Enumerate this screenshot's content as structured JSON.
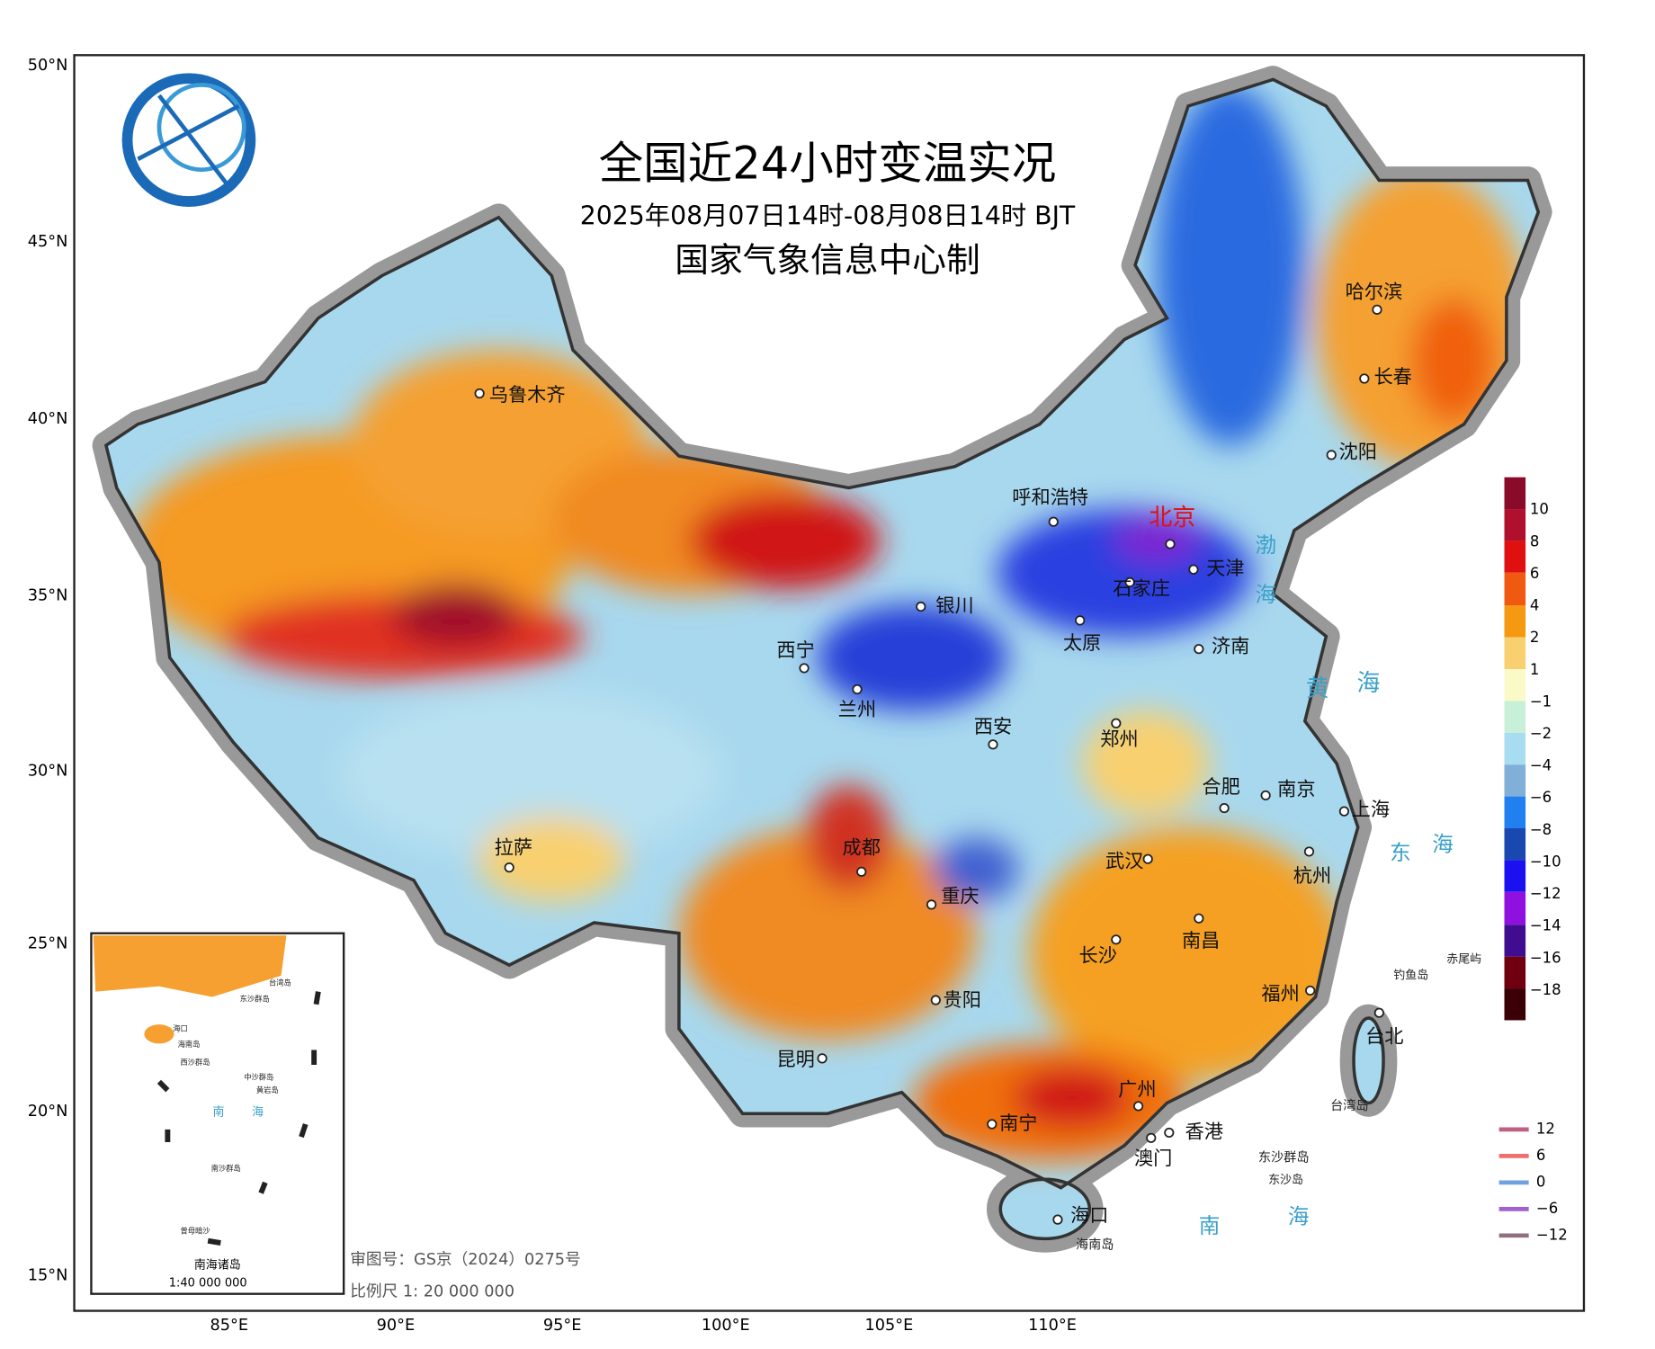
{
  "header": {
    "title": "全国近24小时变温实况",
    "subtitle": "2025年08月07日14时-08月08日14时 BJT",
    "issuer": "国家气象信息中心制"
  },
  "lat_labels": [
    "50°N",
    "45°N",
    "40°N",
    "35°N",
    "30°N",
    "25°N",
    "20°N",
    "15°N"
  ],
  "lon_labels": [
    "85°E",
    "90°E",
    "95°E",
    "100°E",
    "105°E",
    "110°E"
  ],
  "cities": [
    "乌鲁木齐",
    "哈尔滨",
    "长春",
    "沈阳",
    "呼和浩特",
    "北京",
    "天津",
    "石家庄",
    "银川",
    "太原",
    "济南",
    "西宁",
    "兰州",
    "西安",
    "郑州",
    "合肥",
    "南京",
    "上海",
    "拉萨",
    "成都",
    "重庆",
    "武汉",
    "杭州",
    "长沙",
    "南昌",
    "贵阳",
    "福州",
    "台北",
    "昆明",
    "南宁",
    "广州",
    "香港",
    "澳门",
    "海口"
  ],
  "places": [
    "渤",
    "海",
    "黄",
    "海",
    "东",
    "海",
    "南",
    "海",
    "钓鱼岛",
    "赤尾屿",
    "东沙群岛",
    "东沙岛",
    "海南岛",
    "台湾岛"
  ],
  "legend": {
    "labels": [
      "10",
      "8",
      "6",
      "4",
      "2",
      "1",
      "−1",
      "−2",
      "−4",
      "−6",
      "−8",
      "−10",
      "−12",
      "−14",
      "−16",
      "−18"
    ]
  },
  "contour_legend": {
    "labels": [
      "12",
      "6",
      "0",
      "−6",
      "−12"
    ]
  },
  "inset": {
    "title": "南海诸岛",
    "scale": "1:40 000 000",
    "labels": [
      "海口",
      "海南岛",
      "台湾岛",
      "东沙群岛",
      "西沙群岛",
      "中沙群岛",
      "黄岩岛",
      "南",
      "海",
      "南沙群岛",
      "曾母暗沙"
    ]
  },
  "footer": {
    "review_no": "审图号：GS京（2024）0275号",
    "scale": "比例尺 1: 20 000 000"
  }
}
